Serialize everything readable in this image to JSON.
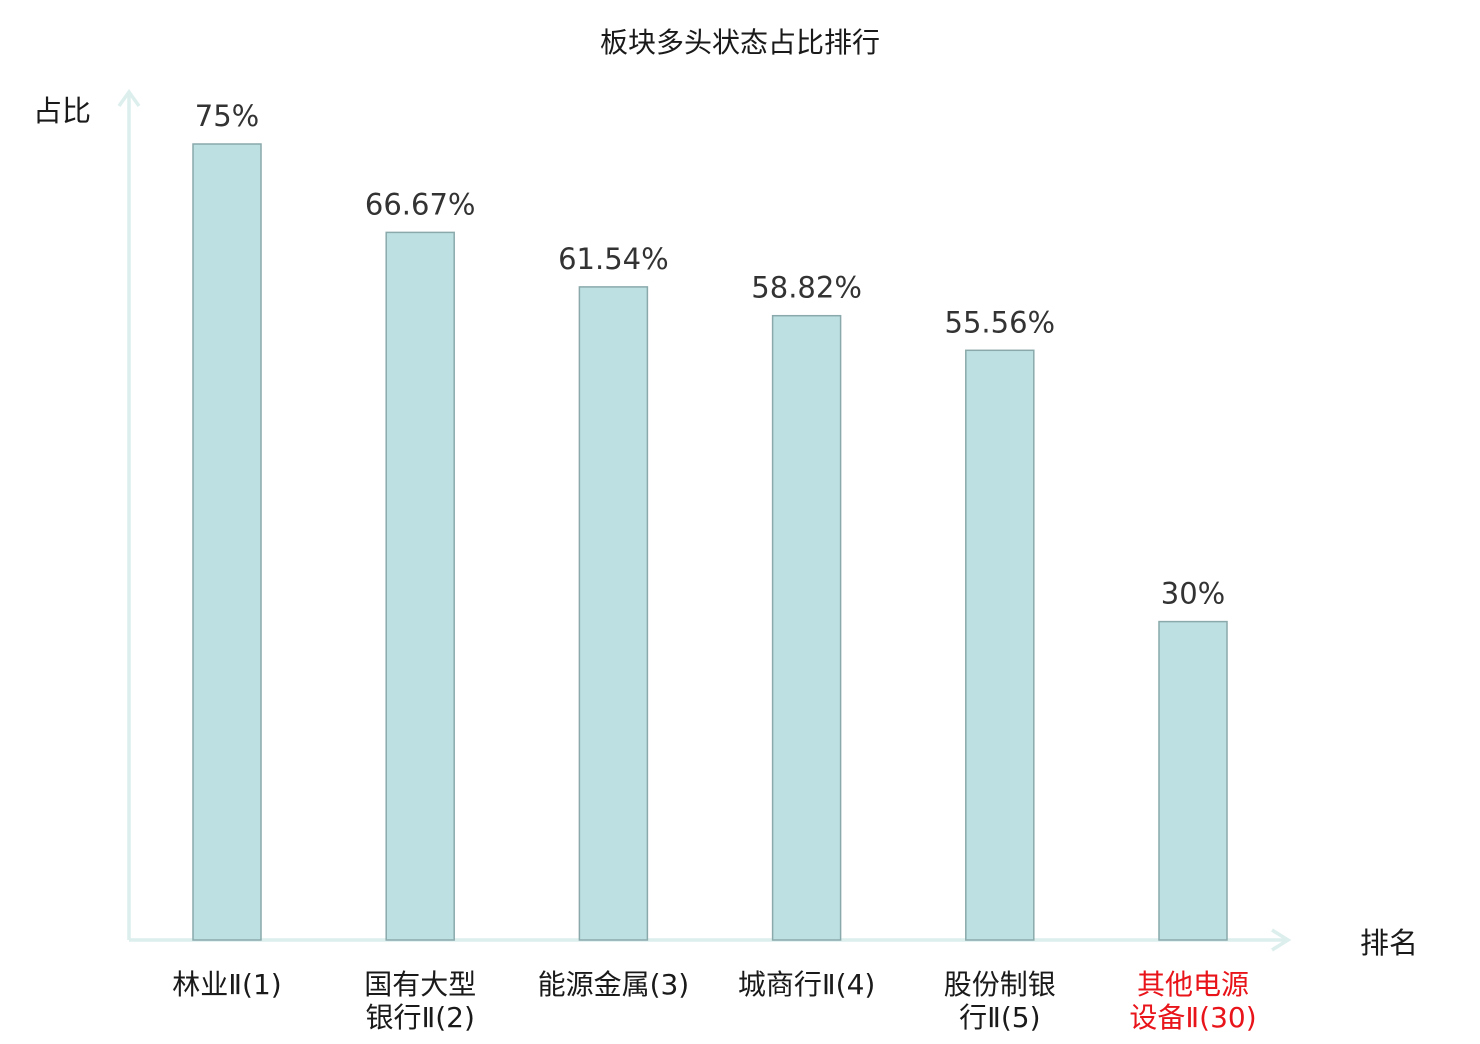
{
  "chart_data": {
    "type": "bar",
    "title": "板块多头状态占比排行",
    "ylabel": "占比",
    "xlabel": "排名",
    "ylim": [
      0,
      75
    ],
    "grid": false,
    "categories": [
      [
        "林业Ⅱ(1)"
      ],
      [
        "国有大型",
        "银行Ⅱ(2)"
      ],
      [
        "能源金属(3)"
      ],
      [
        "城商行Ⅱ(4)"
      ],
      [
        "股份制银",
        "行Ⅱ(5)"
      ],
      [
        "其他电源",
        "设备Ⅱ(30)"
      ]
    ],
    "values": [
      75,
      66.67,
      61.54,
      58.82,
      55.56,
      30
    ],
    "value_labels": [
      "75%",
      "66.67%",
      "61.54%",
      "58.82%",
      "55.56%",
      "30%"
    ],
    "highlight_index": 5
  },
  "colors": {
    "bar_fill": "#bde1e3",
    "bar_stroke": "#8aa9ab",
    "axis": "#dcefed",
    "text": "#333333",
    "title_text": "#1a1a1a",
    "highlight": "#e8141a"
  }
}
